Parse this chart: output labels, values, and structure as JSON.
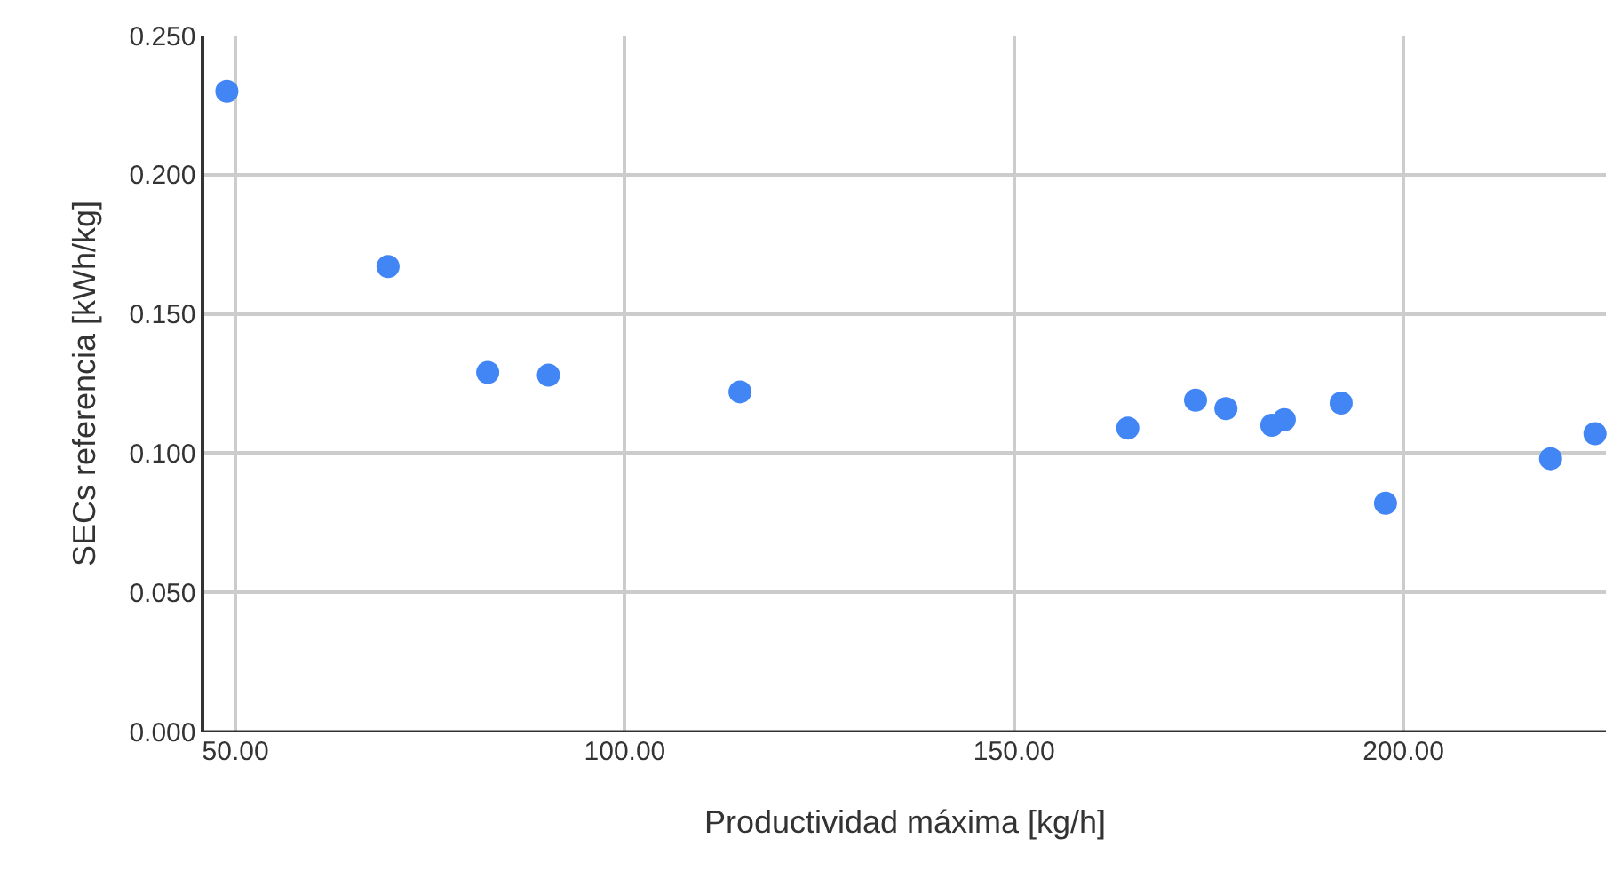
{
  "chart_data": {
    "type": "scatter",
    "xlabel": "Productividad máxima [kg/h]",
    "ylabel": "SECs referencia [kWh/kg]",
    "x": [
      48.9,
      69.6,
      82.4,
      90.2,
      114.8,
      164.6,
      173.3,
      177.2,
      183.1,
      184.7,
      192.0,
      197.7,
      218.9,
      224.6
    ],
    "series": [
      {
        "color": "#4285f4",
        "values": [
          0.23,
          0.167,
          0.129,
          0.128,
          0.122,
          0.109,
          0.119,
          0.116,
          0.11,
          0.112,
          0.118,
          0.082,
          0.098,
          0.107
        ]
      }
    ],
    "xlim": [
      46,
      226
    ],
    "xticks": [
      {
        "value": 50,
        "label": "50.00"
      },
      {
        "value": 100,
        "label": "100.00"
      },
      {
        "value": 150,
        "label": "150.00"
      },
      {
        "value": 200,
        "label": "200.00"
      }
    ],
    "ylim": [
      0,
      0.25
    ],
    "yticks": [
      {
        "value": 0,
        "label": "0.000"
      },
      {
        "value": 0.05,
        "label": "0.050"
      },
      {
        "value": 0.1,
        "label": "0.100"
      },
      {
        "value": 0.15,
        "label": "0.150"
      },
      {
        "value": 0.2,
        "label": "0.200"
      },
      {
        "value": 0.25,
        "label": "0.250"
      }
    ],
    "grid": true,
    "legend": false,
    "marker": "circle"
  }
}
